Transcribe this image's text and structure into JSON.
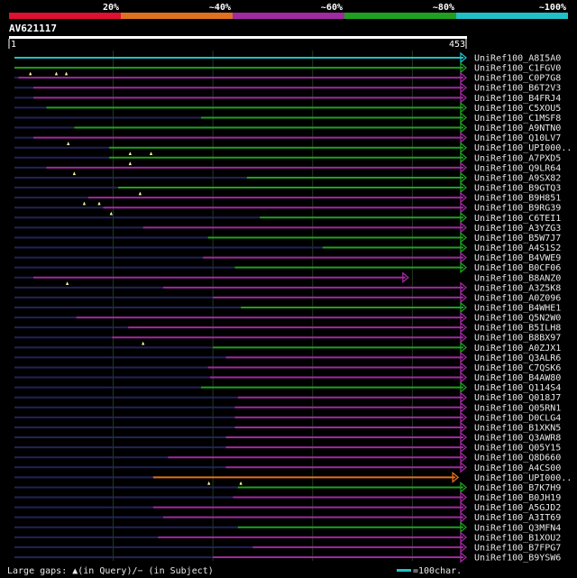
{
  "chart_data": {
    "type": "alignment-overview",
    "query_id": "AV621117",
    "query_start": 1,
    "query_length": 453,
    "identity_legend": [
      {
        "label": "20%",
        "color": "#e01030"
      },
      {
        "label": "~40%",
        "color": "#e07020"
      },
      {
        "label": "~60%",
        "color": "#a02aa0"
      },
      {
        "label": "~80%",
        "color": "#20a020"
      },
      {
        "label": "~100%",
        "color": "#20c0c8"
      }
    ],
    "footer_left": "Large gaps: ▲(in Query)/− (in Subject)",
    "footer_right": "=100char.",
    "hits": [
      {
        "name": "UniRef100_A8I5A0",
        "start": 1,
        "end": 453,
        "color": "cyan",
        "arrow": true,
        "gaps": []
      },
      {
        "name": "UniRef100_C1FGV0",
        "start": 1,
        "end": 453,
        "color": "green",
        "arrow": true,
        "gaps": [
          17,
          43,
          53
        ]
      },
      {
        "name": "UniRef100_C0P7G8",
        "start": 5,
        "end": 453,
        "color": "purple",
        "arrow": true,
        "gaps": []
      },
      {
        "name": "UniRef100_B6T2V3",
        "start": 20,
        "end": 453,
        "color": "purple",
        "arrow": true,
        "gaps": []
      },
      {
        "name": "UniRef100_B4FRJ4",
        "start": 20,
        "end": 453,
        "color": "purple",
        "arrow": true,
        "gaps": []
      },
      {
        "name": "UniRef100_C5XOU5",
        "start": 33,
        "end": 453,
        "color": "green",
        "arrow": true,
        "gaps": []
      },
      {
        "name": "UniRef100_C1MSF8",
        "start": 188,
        "end": 453,
        "color": "green",
        "arrow": true,
        "gaps": []
      },
      {
        "name": "UniRef100_A9NTN0",
        "start": 61,
        "end": 453,
        "color": "green",
        "arrow": true,
        "gaps": []
      },
      {
        "name": "UniRef100_Q10LV7",
        "start": 20,
        "end": 453,
        "color": "purple",
        "arrow": true,
        "gaps": [
          55
        ]
      },
      {
        "name": "UniRef100_UPI000..",
        "start": 96,
        "end": 453,
        "color": "green",
        "arrow": true,
        "gaps": [
          117,
          138
        ]
      },
      {
        "name": "UniRef100_A7PXD5",
        "start": 96,
        "end": 453,
        "color": "green",
        "arrow": true,
        "gaps": [
          117
        ]
      },
      {
        "name": "UniRef100_Q9LR64",
        "start": 33,
        "end": 453,
        "color": "purple",
        "arrow": true,
        "gaps": [
          61
        ]
      },
      {
        "name": "UniRef100_A9SX82",
        "start": 234,
        "end": 453,
        "color": "green",
        "arrow": true,
        "gaps": []
      },
      {
        "name": "UniRef100_B9GTQ3",
        "start": 105,
        "end": 453,
        "color": "green",
        "arrow": true,
        "gaps": [
          127
        ]
      },
      {
        "name": "UniRef100_B9H851",
        "start": 75,
        "end": 453,
        "color": "purple",
        "arrow": true,
        "gaps": [
          71,
          86
        ]
      },
      {
        "name": "UniRef100_B9RG39",
        "start": 90,
        "end": 453,
        "color": "purple",
        "arrow": true,
        "gaps": [
          98
        ]
      },
      {
        "name": "UniRef100_C6TEI1",
        "start": 247,
        "end": 453,
        "color": "green",
        "arrow": true,
        "gaps": []
      },
      {
        "name": "UniRef100_A3YZG3",
        "start": 130,
        "end": 453,
        "color": "purple",
        "arrow": true,
        "gaps": []
      },
      {
        "name": "UniRef100_B5W7J7",
        "start": 195,
        "end": 453,
        "color": "green",
        "arrow": true,
        "gaps": []
      },
      {
        "name": "UniRef100_A4S1S2",
        "start": 310,
        "end": 453,
        "color": "green",
        "arrow": true,
        "gaps": []
      },
      {
        "name": "UniRef100_B4VWE9",
        "start": 190,
        "end": 453,
        "color": "purple",
        "arrow": true,
        "gaps": []
      },
      {
        "name": "UniRef100_B0CF06",
        "start": 222,
        "end": 453,
        "color": "green",
        "arrow": true,
        "gaps": []
      },
      {
        "name": "UniRef100_B8ANZ0",
        "start": 20,
        "end": 395,
        "color": "purple",
        "arrow": true,
        "gaps": [
          54
        ]
      },
      {
        "name": "UniRef100_A3Z5K8",
        "start": 150,
        "end": 453,
        "color": "purple",
        "arrow": true,
        "gaps": []
      },
      {
        "name": "UniRef100_A0Z096",
        "start": 200,
        "end": 453,
        "color": "purple",
        "arrow": true,
        "gaps": []
      },
      {
        "name": "UniRef100_B4WHE1",
        "start": 228,
        "end": 453,
        "color": "green",
        "arrow": true,
        "gaps": []
      },
      {
        "name": "UniRef100_Q5N2W0",
        "start": 63,
        "end": 453,
        "color": "purple",
        "arrow": true,
        "gaps": []
      },
      {
        "name": "UniRef100_B5ILH8",
        "start": 115,
        "end": 453,
        "color": "purple",
        "arrow": true,
        "gaps": []
      },
      {
        "name": "UniRef100_B8BX97",
        "start": 99,
        "end": 453,
        "color": "purple",
        "arrow": true,
        "gaps": [
          130
        ]
      },
      {
        "name": "UniRef100_A0ZJX1",
        "start": 200,
        "end": 453,
        "color": "green",
        "arrow": true,
        "gaps": []
      },
      {
        "name": "UniRef100_Q3ALR6",
        "start": 213,
        "end": 453,
        "color": "purple",
        "arrow": true,
        "gaps": []
      },
      {
        "name": "UniRef100_C7QSK6",
        "start": 195,
        "end": 453,
        "color": "purple",
        "arrow": true,
        "gaps": []
      },
      {
        "name": "UniRef100_B4AW80",
        "start": 197,
        "end": 453,
        "color": "purple",
        "arrow": true,
        "gaps": []
      },
      {
        "name": "UniRef100_Q114S4",
        "start": 188,
        "end": 453,
        "color": "green",
        "arrow": true,
        "gaps": []
      },
      {
        "name": "UniRef100_Q018J7",
        "start": 225,
        "end": 453,
        "color": "purple",
        "arrow": true,
        "gaps": []
      },
      {
        "name": "UniRef100_Q05RN1",
        "start": 222,
        "end": 453,
        "color": "purple",
        "arrow": true,
        "gaps": []
      },
      {
        "name": "UniRef100_D0CLG4",
        "start": 222,
        "end": 453,
        "color": "purple",
        "arrow": true,
        "gaps": []
      },
      {
        "name": "UniRef100_B1XKN5",
        "start": 222,
        "end": 453,
        "color": "purple",
        "arrow": true,
        "gaps": []
      },
      {
        "name": "UniRef100_Q3AWR8",
        "start": 213,
        "end": 453,
        "color": "purple",
        "arrow": true,
        "gaps": []
      },
      {
        "name": "UniRef100_Q05Y15",
        "start": 213,
        "end": 453,
        "color": "purple",
        "arrow": true,
        "gaps": []
      },
      {
        "name": "UniRef100_Q8D660",
        "start": 155,
        "end": 453,
        "color": "purple",
        "arrow": true,
        "gaps": []
      },
      {
        "name": "UniRef100_A4CS00",
        "start": 213,
        "end": 453,
        "color": "purple",
        "arrow": true,
        "gaps": []
      },
      {
        "name": "UniRef100_UPI000..",
        "start": 140,
        "end": 445,
        "color": "orange",
        "arrow": true,
        "gaps": [
          196,
          228
        ]
      },
      {
        "name": "UniRef100_B7K7H9",
        "start": 225,
        "end": 453,
        "color": "green",
        "arrow": true,
        "gaps": []
      },
      {
        "name": "UniRef100_B0JH19",
        "start": 220,
        "end": 453,
        "color": "purple",
        "arrow": true,
        "gaps": []
      },
      {
        "name": "UniRef100_A5GJD2",
        "start": 140,
        "end": 453,
        "color": "purple",
        "arrow": true,
        "gaps": []
      },
      {
        "name": "UniRef100_A3IT69",
        "start": 150,
        "end": 453,
        "color": "purple",
        "arrow": true,
        "gaps": []
      },
      {
        "name": "UniRef100_Q3MFN4",
        "start": 225,
        "end": 453,
        "color": "green",
        "arrow": true,
        "gaps": []
      },
      {
        "name": "UniRef100_B1XOU2",
        "start": 145,
        "end": 453,
        "color": "purple",
        "arrow": true,
        "gaps": []
      },
      {
        "name": "UniRef100_B7FPG7",
        "start": 240,
        "end": 453,
        "color": "purple",
        "arrow": true,
        "gaps": []
      },
      {
        "name": "UniRef100_B9YSW6",
        "start": 200,
        "end": 453,
        "color": "purple",
        "arrow": true,
        "gaps": []
      }
    ]
  },
  "colors": {
    "cyan": "#20c0c8",
    "green": "#20a020",
    "purple": "#a02aa0",
    "orange": "#e07020",
    "red": "#e01030",
    "unaligned": "#22225a",
    "grid": "#1f3a1f",
    "gap_marker": "#ffffa0",
    "label": "#e8e8e8"
  }
}
